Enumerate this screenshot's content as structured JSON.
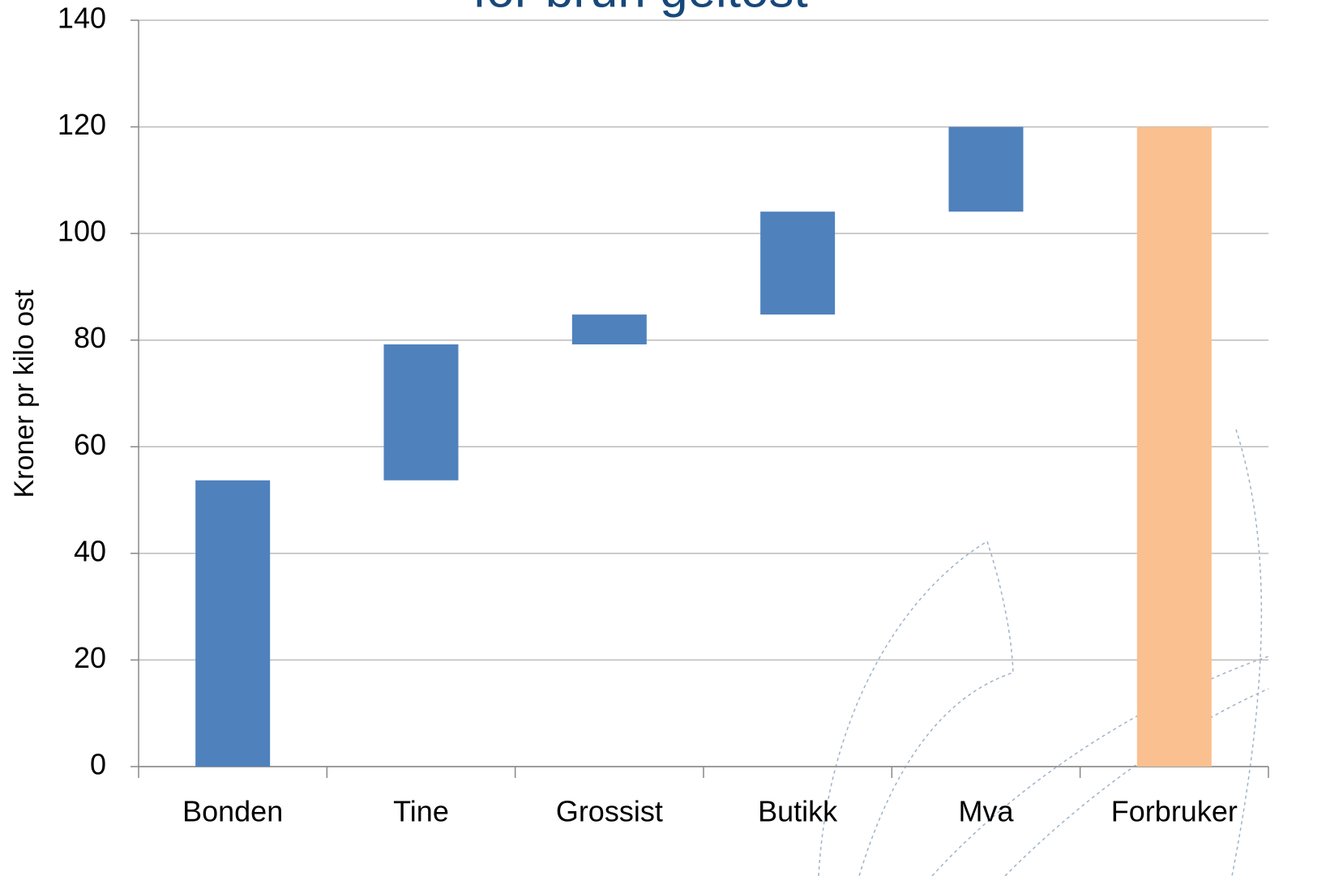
{
  "chart_data": {
    "type": "waterfall",
    "title": "for brun geitost",
    "y_label": "Kroner pr kilo ost",
    "categories": [
      "Bonden",
      "Tine",
      "Grossist",
      "Butikk",
      "Mva",
      "Forbruker"
    ],
    "values": [
      53.7,
      25.5,
      5.6,
      19.3,
      15.9,
      120
    ],
    "totals": [
      false,
      false,
      false,
      false,
      false,
      true
    ],
    "color": "#4f81bd",
    "total_color": "#fac090",
    "ylim": [
      0,
      140
    ],
    "yticks": [
      0,
      20,
      40,
      60,
      80,
      100,
      120,
      140
    ],
    "grid": true
  }
}
